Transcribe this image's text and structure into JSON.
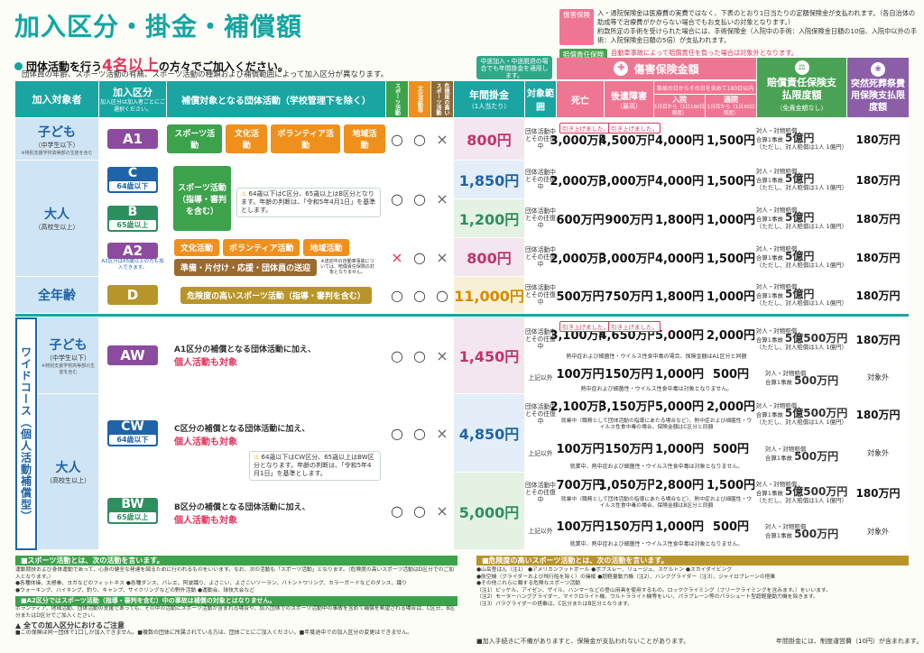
{
  "title": "加入区分・掛金・補償額",
  "lead": {
    "pre": "団体活動を行う",
    "big": "4名以上",
    "post": "の方々でご加入ください。",
    "sub": "団体員の年齢、スポーツ活動の有無、スポーツ活動の種類および補償範囲によって加入区分が異なります。"
  },
  "notes": {
    "injury_label": "傷害保険",
    "injury_text": "入・通院保険金は医療費の実費ではなく、下表のとおり1日当たりの定額保険金が支払われます。（各自治体の助成等で治療費がかからない場合でもお支払いの対象となります。）\n約款所定の手術を受けられた場合には、手術保険金（入院中の手術：入院保険金日額の10倍、入院中以外の手術：入院保険金日額の5倍）が支払われます。",
    "liab_label": "賠償責任保険",
    "liab_text": "自動車事故によって賠償責任を負った場合は対象外となります。"
  },
  "bubble": "中途加入・中途脱退の場合でも年間掛金を適用します。",
  "headers": {
    "target": "加入対象者",
    "cls": "加入区分",
    "cls_sub": "加入区分は加入者ごとにご選択ください。",
    "activity": "補償対象となる団体活動（学校管理下を除く）",
    "sports": "スポーツ活動",
    "culture": "文化活動等",
    "danger": "危険度の高いスポーツ活動",
    "fee": "年間掛金",
    "fee_sub": "（1人当たり）",
    "scope": "対象範囲",
    "injury": "傷害保険金額",
    "death": "死亡",
    "disability": "後遺障害",
    "disability_sub": "（最高）",
    "daily": "事故の日からその日を含めて180日以内",
    "hosp": "入院",
    "hosp_sub": "1日目から（1日180日限度）",
    "outp": "通院",
    "outp_sub": "1日目から（1日30日限度）",
    "liability": "賠償責任保険支払限度額",
    "liability_sub": "（免責金額なし）",
    "funeral": "突然死葬祭費用保険支払限度額"
  },
  "rows": [
    {
      "target": "子ども",
      "target_sub": "（中学生以下）",
      "target_note": "※特別支援学校高等部の生徒を含む",
      "code": "A1",
      "acts": [
        "スポーツ活動",
        "文化活動",
        "ボランティア活動",
        "地域活動"
      ],
      "marks": [
        "○",
        "○",
        "×"
      ],
      "fee": "800円",
      "scope": "団体活動中とその往復中",
      "death": "3,000万円",
      "dis": "4,500万円",
      "hosp": "4,000円",
      "outp": "1,500円",
      "liab": "5億円",
      "funeral": "180万円"
    },
    {
      "code": "C",
      "age": "64歳以下",
      "fee": "1,850円",
      "scope": "団体活動中とその往復中",
      "death": "2,000万円",
      "dis": "3,000万円",
      "hosp": "4,000円",
      "outp": "1,500円",
      "liab": "5億円",
      "funeral": "180万円"
    },
    {
      "target": "大人",
      "target_sub": "（高校生以上）",
      "code": "B",
      "age": "65歳以上",
      "act": "スポーツ活動（指導・審判を含む）",
      "warn": "64歳以下はC区分、65歳以上はB区分となります。年齢の判断は、「令和5年4月1日」を基準とします。",
      "marks": [
        "○",
        "○",
        "×"
      ],
      "fee": "1,200円",
      "scope": "団体活動中とその往復中",
      "death": "600万円",
      "dis": "900万円",
      "hosp": "1,800円",
      "outp": "1,000円",
      "liab": "5億円",
      "funeral": "180万円"
    },
    {
      "code": "A2",
      "code_note": "A2区分は65歳以上の方も加入できます。",
      "acts": [
        "文化活動",
        "ボランティア活動",
        "地域活動"
      ],
      "act2": "準備・片付け・応援・団体員の送迎",
      "act2_note": "※送迎中の自動車事故については、賠償責任保険の対象となりません。",
      "marks": [
        "×",
        "○",
        "×"
      ],
      "fee": "800円",
      "scope": "団体活動中とその往復中",
      "death": "2,000万円",
      "dis": "3,000万円",
      "hosp": "4,000円",
      "outp": "1,500円",
      "liab": "5億円",
      "funeral": "180万円"
    },
    {
      "target": "全年齢",
      "code": "D",
      "act": "危険度の高いスポーツ活動（指導・審判を含む）",
      "marks": [
        "○",
        "○",
        "○"
      ],
      "fee": "11,000円",
      "scope": "団体活動中とその往復中",
      "death": "500万円",
      "dis": "750万円",
      "hosp": "1,800円",
      "outp": "1,000円",
      "liab": "5億円",
      "funeral": "180万円"
    }
  ],
  "wide": {
    "label": "ワイドコース（個人活動補償型）",
    "aw": {
      "target": "子ども",
      "target_sub": "（中学生以下）",
      "target_note": "※特別支援学校高等部の生徒を含む",
      "code": "AW",
      "desc1": "A1区分の補償となる団体活動に加え、",
      "desc2": "個人活動も対象",
      "marks": [
        "○",
        "○",
        "×"
      ],
      "fee": "1,450円",
      "scope1": "団体活動中とその往復中",
      "death1": "3,100万円",
      "dis1": "4,650万円",
      "hosp1": "5,000円",
      "outp1": "2,000円",
      "note1": "熱中症および細菌性・ウイルス性食中毒の場合、保険金額はA1区分と同額",
      "scope2": "上記以外",
      "death2": "100万円",
      "dis2": "150万円",
      "hosp2": "1,000円",
      "outp2": "500円",
      "note2": "熱中症および細菌性・ウイルス性食中毒は対象となりません。",
      "liab": "5億500万円",
      "liab2": "500万円",
      "funeral": "180万円",
      "funeral2": "対象外"
    },
    "cw": {
      "target": "大人",
      "target_sub": "（高校生以上）",
      "code": "CW",
      "age": "64歳以下",
      "desc1": "C区分の補償となる団体活動に加え、",
      "desc2": "個人活動も対象",
      "marks": [
        "○",
        "○",
        "×"
      ],
      "fee": "4,850円",
      "scope1": "団体活動中とその往復中",
      "death1": "2,100万円",
      "dis1": "3,150万円",
      "hosp1": "5,000円",
      "outp1": "2,000円",
      "note1": "就業中（職務として団体活動の指導にあたる場合など）、熱中症および細菌性・ウイルス性食中毒の場合、保険金額はC区分と同額",
      "scope2": "上記以外",
      "death2": "100万円",
      "dis2": "150万円",
      "hosp2": "1,000円",
      "outp2": "500円",
      "note2": "就業中、熱中症および細菌性・ウイルス性食中毒は対象となりません。",
      "liab": "5億500万円",
      "liab2": "500万円",
      "funeral": "180万円",
      "funeral2": "対象外",
      "warn": "64歳以下はCW区分、65歳以上はBW区分となります。年齢の判断は、「令和5年4月1日」を基準とします。"
    },
    "bw": {
      "code": "BW",
      "age": "65歳以上",
      "desc1": "B区分の補償となる団体活動に加え、",
      "desc2": "個人活動も対象",
      "marks": [
        "○",
        "○",
        "×"
      ],
      "fee": "5,000円",
      "scope1": "団体活動中とその往復中",
      "death1": "700万円",
      "dis1": "1,050万円",
      "hosp1": "2,800円",
      "outp1": "1,500円",
      "note1": "就業中（職務として団体活動の指導にあたる場合など）、熱中症および細菌性・ウイルス性食中毒の場合、保険金額はB区分と同額",
      "scope2": "上記以外",
      "death2": "100万円",
      "dis2": "150万円",
      "hosp2": "1,000円",
      "outp2": "500円",
      "note2": "就業中、熱中症および細菌性・ウイルス性食中毒は対象となりません。",
      "liab": "5億500万円",
      "liab2": "500万円",
      "funeral": "180万円",
      "funeral2": "対象外"
    }
  },
  "raise": "引き上げました。",
  "liab_text": {
    "l1": "対人・対物賠償",
    "l2": "合算1事故",
    "l3": "（ただし、対人賠償は1人 1億円）"
  },
  "footer": {
    "sports_h": "■スポーツ活動とは、次の活動を言います。",
    "sports_t": "運動競技および身体運動であって、心身の健全な発達を図るために行われるものをいいます。なお、次の活動も「スポーツ活動」となります。（危険度の高いスポーツ活動はD区分でのご加入となります。）\n●各種体操、太極拳、ヨガなどのフィットネス ●各種ダンス、バレエ、阿波踊り、よさこい、よさこいソーラン、バトントワリング、カラーガードなどのダンス、踊り\n●ウォーキング、ハイキング、釣り、キャンプ、サイクリングなどの野外活動 ●運動会、球技大会など",
    "a2_h": "■A2区分ではスポーツ活動（指導・審判を含む）中の事故は補償の対象とはなりません。",
    "a2_t": "ボランティア、地域活動、団体活動の支援であっても、その中の活動にスポーツ活動が含まれる場合や、加入団体でのスポーツ活動中の事故を含めて補償を希望される場合は、C区分、B区分またはD区分でご加入ください。",
    "caution_h": "全ての加入区分におけるご注意",
    "caution_t": "■この保険は同一団体で1口しか加入できません。■複数の団体に所属されている方は、団体ごとにご加入ください。■年度途中での加入区分の変更はできません。",
    "danger_h": "■危険度の高いスポーツ活動とは、次の活動を言います。",
    "danger_t": "●山岳登はん（注1） ●アメリカンフットボール ●ボブスレー、リュージュ、スケルトン ●スカイダイビング\n●航空機（グライダーおよび飛行船を除く）の操縦 ●超軽量動力機（注2）、ハンググライダー（注3）、ジャイロプレーンの搭乗\n●その他これらに類する危険なスポーツ活動\n（注1）ピッケル、アイゼン、ザイル、ハンマーなどの登山用具を使用するもの。ロッククライミング（フリークライミングを含みます。）をいいます。\n（注2）モーターハンググライダー、マイクロライト機、ウルトラライト機等をいい、パラプレーン等のパラシュート型超軽量動力機を除きます。\n（注3）パラグライダーの搭乗は、C区分またはB区分となります。",
    "bottom_l": "■加入手続きに不備がありますと、保険金が支払われないことがあります。",
    "bottom_r": "年間掛金には、制度運営費（10円）が含まれます。"
  }
}
